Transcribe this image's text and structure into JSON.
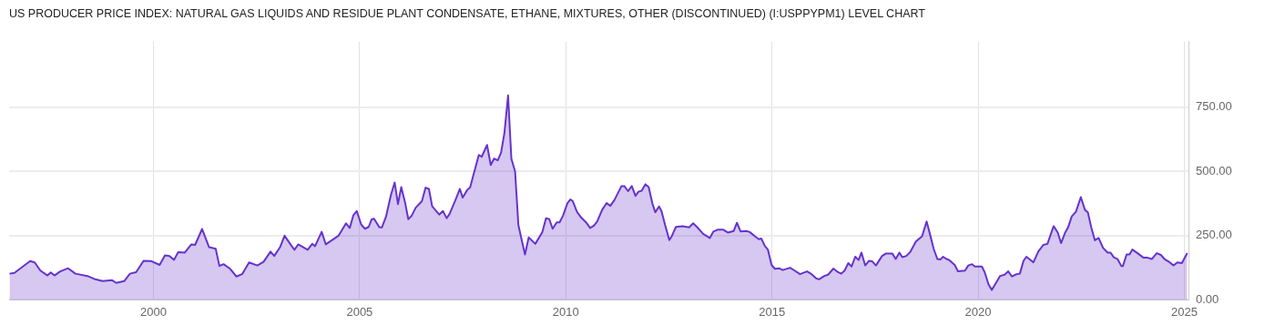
{
  "chart_data": {
    "type": "area",
    "title": "US PRODUCER PRICE INDEX: NATURAL GAS LIQUIDS AND RESIDUE PLANT CONDENSATE, ETHANE, MIXTURES, OTHER (DISCONTINUED) (I:USPPYPM1) LEVEL CHART",
    "xlim": [
      1996.5,
      2025.1
    ],
    "xticks": [
      2000,
      2005,
      2010,
      2015,
      2020,
      2025
    ],
    "ylim": [
      0,
      1005
    ],
    "yticks": [
      {
        "value": 0,
        "label": "0.00"
      },
      {
        "value": 250,
        "label": "250.00"
      },
      {
        "value": 500,
        "label": "500.00"
      },
      {
        "value": 750,
        "label": "750.00"
      }
    ],
    "grid": true,
    "legend": false,
    "series": [
      {
        "color": "#6633cc",
        "x": [
          1996.51,
          1996.63,
          1997.01,
          1997.12,
          1997.26,
          1997.43,
          1997.51,
          1997.6,
          1997.74,
          1997.93,
          1998.11,
          1998.4,
          1998.59,
          1998.77,
          1998.99,
          1999.1,
          1999.29,
          1999.43,
          1999.58,
          1999.76,
          1999.95,
          2000.15,
          2000.28,
          2000.39,
          2000.5,
          2000.6,
          2000.76,
          2000.92,
          2001.01,
          2001.18,
          2001.35,
          2001.51,
          2001.6,
          2001.7,
          2001.86,
          2002.01,
          2002.15,
          2002.32,
          2002.52,
          2002.67,
          2002.84,
          2002.93,
          2003.07,
          2003.18,
          2003.35,
          2003.42,
          2003.51,
          2003.74,
          2003.85,
          2003.92,
          2004.08,
          2004.18,
          2004.49,
          2004.67,
          2004.76,
          2004.85,
          2004.93,
          2005.04,
          2005.13,
          2005.22,
          2005.29,
          2005.35,
          2005.48,
          2005.54,
          2005.64,
          2005.76,
          2005.85,
          2005.93,
          2006.01,
          2006.1,
          2006.18,
          2006.26,
          2006.36,
          2006.51,
          2006.6,
          2006.68,
          2006.76,
          2006.93,
          2007.02,
          2007.11,
          2007.18,
          2007.32,
          2007.43,
          2007.5,
          2007.61,
          2007.68,
          2007.89,
          2007.96,
          2008.09,
          2008.18,
          2008.26,
          2008.35,
          2008.43,
          2008.51,
          2008.6,
          2008.68,
          2008.77,
          2008.85,
          2009.01,
          2009.1,
          2009.26,
          2009.43,
          2009.52,
          2009.6,
          2009.68,
          2009.78,
          2009.85,
          2009.93,
          2010.04,
          2010.11,
          2010.17,
          2010.27,
          2010.37,
          2010.49,
          2010.59,
          2010.68,
          2010.76,
          2010.88,
          2010.99,
          2011.08,
          2011.18,
          2011.35,
          2011.42,
          2011.51,
          2011.6,
          2011.69,
          2011.76,
          2011.84,
          2011.93,
          2012.01,
          2012.1,
          2012.17,
          2012.26,
          2012.32,
          2012.4,
          2012.51,
          2012.57,
          2012.67,
          2012.83,
          2012.99,
          2013.09,
          2013.18,
          2013.33,
          2013.49,
          2013.58,
          2013.68,
          2013.82,
          2013.93,
          2014.07,
          2014.15,
          2014.24,
          2014.38,
          2014.46,
          2014.6,
          2014.68,
          2014.74,
          2014.83,
          2014.9,
          2014.99,
          2015.07,
          2015.17,
          2015.26,
          2015.44,
          2015.55,
          2015.68,
          2015.85,
          2015.96,
          2016.07,
          2016.14,
          2016.27,
          2016.36,
          2016.49,
          2016.6,
          2016.68,
          2016.76,
          2016.85,
          2016.93,
          2017.02,
          2017.1,
          2017.17,
          2017.26,
          2017.35,
          2017.43,
          2017.52,
          2017.67,
          2017.76,
          2017.92,
          2018.0,
          2018.09,
          2018.16,
          2018.26,
          2018.35,
          2018.49,
          2018.64,
          2018.75,
          2018.83,
          2018.92,
          2019.01,
          2019.08,
          2019.15,
          2019.23,
          2019.3,
          2019.43,
          2019.51,
          2019.68,
          2019.76,
          2019.85,
          2019.92,
          2020.09,
          2020.16,
          2020.25,
          2020.33,
          2020.53,
          2020.64,
          2020.73,
          2020.82,
          2020.93,
          2021.01,
          2021.1,
          2021.17,
          2021.34,
          2021.46,
          2021.58,
          2021.68,
          2021.83,
          2021.93,
          2022.01,
          2022.11,
          2022.18,
          2022.27,
          2022.37,
          2022.49,
          2022.59,
          2022.66,
          2022.74,
          2022.83,
          2022.92,
          2023.03,
          2023.14,
          2023.21,
          2023.29,
          2023.38,
          2023.47,
          2023.51,
          2023.6,
          2023.67,
          2023.74,
          2023.88,
          2024.01,
          2024.11,
          2024.21,
          2024.33,
          2024.43,
          2024.52,
          2024.61,
          2024.74,
          2024.83,
          2024.94,
          2025.07
        ],
        "values": [
          102,
          105,
          151,
          146,
          114,
          95,
          107,
          95,
          111,
          123,
          102,
          93,
          80,
          73,
          77,
          66,
          73,
          102,
          108,
          152,
          151,
          136,
          173,
          171,
          156,
          186,
          184,
          216,
          214,
          276,
          205,
          199,
          132,
          139,
          121,
          91,
          100,
          146,
          134,
          148,
          188,
          171,
          205,
          250,
          210,
          195,
          216,
          195,
          218,
          209,
          265,
          216,
          250,
          298,
          280,
          330,
          346,
          293,
          277,
          284,
          313,
          316,
          282,
          282,
          324,
          409,
          457,
          373,
          439,
          381,
          314,
          327,
          359,
          384,
          437,
          432,
          364,
          332,
          346,
          318,
          334,
          387,
          432,
          398,
          428,
          438,
          564,
          557,
          603,
          525,
          550,
          543,
          573,
          648,
          796,
          550,
          500,
          291,
          177,
          243,
          218,
          264,
          318,
          314,
          277,
          302,
          302,
          327,
          377,
          391,
          384,
          343,
          321,
          302,
          280,
          289,
          305,
          350,
          377,
          366,
          389,
          443,
          443,
          423,
          443,
          405,
          421,
          425,
          450,
          439,
          375,
          341,
          364,
          346,
          296,
          233,
          248,
          284,
          287,
          282,
          298,
          284,
          257,
          241,
          266,
          273,
          273,
          262,
          268,
          300,
          266,
          268,
          264,
          246,
          236,
          239,
          209,
          196,
          136,
          121,
          123,
          116,
          125,
          114,
          100,
          111,
          100,
          84,
          80,
          93,
          98,
          122,
          108,
          102,
          114,
          143,
          130,
          168,
          155,
          184,
          134,
          152,
          150,
          134,
          171,
          180,
          180,
          159,
          184,
          166,
          171,
          186,
          227,
          248,
          305,
          257,
          199,
          159,
          157,
          168,
          159,
          155,
          136,
          111,
          114,
          134,
          139,
          130,
          130,
          107,
          61,
          39,
          93,
          98,
          111,
          91,
          100,
          102,
          152,
          168,
          146,
          189,
          214,
          218,
          287,
          262,
          221,
          262,
          282,
          325,
          343,
          400,
          350,
          341,
          284,
          232,
          241,
          202,
          184,
          184,
          166,
          159,
          132,
          132,
          177,
          177,
          196,
          180,
          164,
          164,
          159,
          182,
          175,
          159,
          150,
          134,
          146,
          143,
          182
        ]
      }
    ]
  }
}
